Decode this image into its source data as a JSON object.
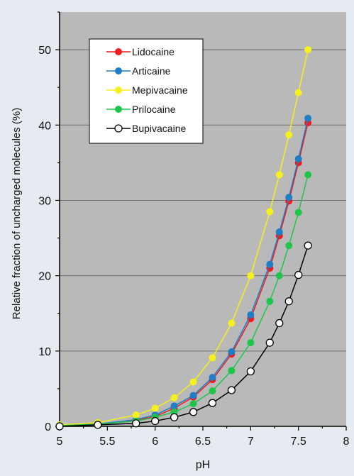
{
  "chart_data": {
    "type": "line",
    "title": "",
    "xlabel": "pH",
    "ylabel": "Relative fraction of uncharged molecules (%)",
    "xlim": [
      5,
      8
    ],
    "ylim": [
      0,
      55
    ],
    "x_ticks": [
      5,
      5.5,
      6,
      6.5,
      7,
      7.5,
      8
    ],
    "x_tick_labels": [
      "5",
      "5.5",
      "6",
      "6.5",
      "7",
      "7.5",
      "8"
    ],
    "y_ticks": [
      0,
      10,
      20,
      30,
      40,
      50
    ],
    "y_tick_labels": [
      "0",
      "10",
      "20",
      "30",
      "40",
      "50"
    ],
    "grid": "horizontal",
    "plot_background": "#b9b9b9",
    "page_background": "#e6eaf1",
    "legend_position": "top-left",
    "x": [
      5,
      5.4,
      5.8,
      6,
      6.2,
      6.4,
      6.6,
      6.8,
      7,
      7.2,
      7.3,
      7.4,
      7.5,
      7.6
    ],
    "series": [
      {
        "name": "Lidocaine",
        "color": "#ee1c1c",
        "marker": "filled",
        "values": [
          0.1,
          0.3,
          0.8,
          1.3,
          2.4,
          3.9,
          6.2,
          9.6,
          14.3,
          21.0,
          25.3,
          29.9,
          35.0,
          40.3
        ]
      },
      {
        "name": "Articaine",
        "color": "#1f7ec4",
        "marker": "filled",
        "values": [
          0.1,
          0.3,
          0.9,
          1.5,
          2.7,
          4.1,
          6.5,
          9.9,
          14.8,
          21.5,
          25.8,
          30.4,
          35.5,
          40.9
        ]
      },
      {
        "name": "Mepivacaine",
        "color": "#f5f01e",
        "marker": "filled",
        "values": [
          0.2,
          0.5,
          1.5,
          2.4,
          3.8,
          5.9,
          9.1,
          13.7,
          20.0,
          28.5,
          33.4,
          38.7,
          44.3,
          50.0
        ]
      },
      {
        "name": "Prilocaine",
        "color": "#1fc44a",
        "marker": "filled",
        "values": [
          0.1,
          0.3,
          0.7,
          1.2,
          1.9,
          3.0,
          4.7,
          7.4,
          11.1,
          16.6,
          20.0,
          24.0,
          28.4,
          33.4
        ]
      },
      {
        "name": "Bupivacaine",
        "color": "#000000",
        "marker": "hollow",
        "values": [
          0.0,
          0.2,
          0.4,
          0.7,
          1.2,
          1.9,
          3.1,
          4.8,
          7.3,
          11.1,
          13.7,
          16.6,
          20.1,
          24.0
        ]
      }
    ]
  }
}
